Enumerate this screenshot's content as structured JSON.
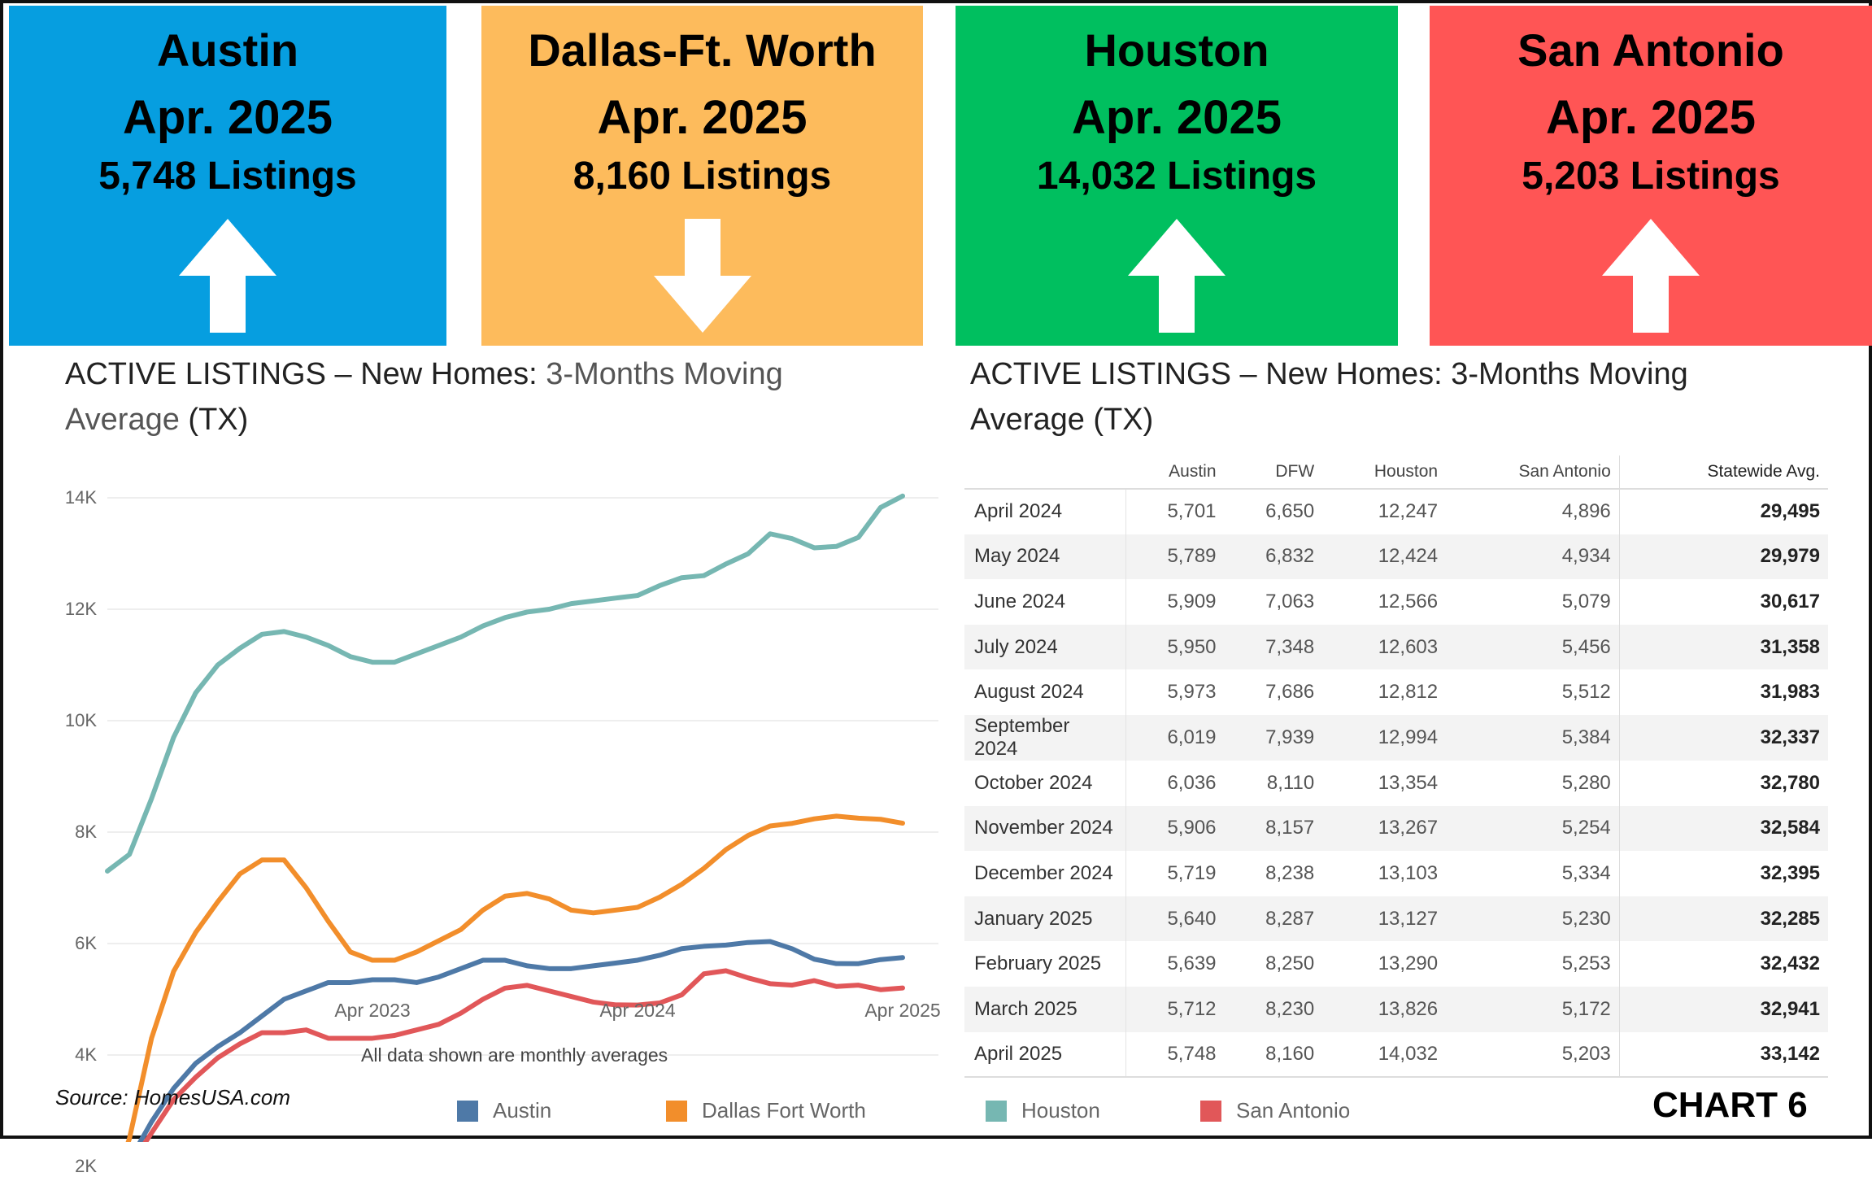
{
  "boxes": [
    {
      "city": "Austin",
      "period": "Apr. 2025",
      "count": "5,748 Listings",
      "direction": "up",
      "color": "#069ee0"
    },
    {
      "city": "Dallas-Ft. Worth",
      "period": "Apr. 2025",
      "count": "8,160 Listings",
      "direction": "down",
      "color": "#fdbb5c"
    },
    {
      "city": "Houston",
      "period": "Apr. 2025",
      "count": "14,032 Listings",
      "direction": "up",
      "color": "#00bf5f"
    },
    {
      "city": "San Antonio",
      "period": "Apr. 2025",
      "count": "5,203 Listings",
      "direction": "up",
      "color": "#ff5555"
    }
  ],
  "left_title": {
    "bold": "ACTIVE LISTINGS – New Homes:",
    "light": " 3-Months  Moving",
    "line2": "Average",
    "suffix": " (TX)"
  },
  "right_title": {
    "bold": "ACTIVE LISTINGS – New Homes: 3-Months  Moving",
    "line2": "Average (TX)"
  },
  "chart_data": {
    "type": "line",
    "x": [
      "2022-04",
      "2022-05",
      "2022-06",
      "2022-07",
      "2022-08",
      "2022-09",
      "2022-10",
      "2022-11",
      "2022-12",
      "2023-01",
      "2023-02",
      "2023-03",
      "2023-04",
      "2023-05",
      "2023-06",
      "2023-07",
      "2023-08",
      "2023-09",
      "2023-10",
      "2023-11",
      "2023-12",
      "2024-01",
      "2024-02",
      "2024-03",
      "2024-04",
      "2024-05",
      "2024-06",
      "2024-07",
      "2024-08",
      "2024-09",
      "2024-10",
      "2024-11",
      "2024-12",
      "2025-01",
      "2025-02",
      "2025-03",
      "2025-04"
    ],
    "x_tick_labels": [
      "Apr 2023",
      "Apr 2024",
      "Apr 2025"
    ],
    "y_tick_labels": [
      "2K",
      "4K",
      "6K",
      "8K",
      "10K",
      "12K",
      "14K"
    ],
    "ylim": [
      0,
      14500
    ],
    "grid": true,
    "note": "All data shown are monthly averages",
    "legend_position": "bottom",
    "series": [
      {
        "name": "Austin",
        "color": "#4e79a7",
        "values": [
          1500,
          2100,
          2800,
          3400,
          3850,
          4150,
          4400,
          4700,
          5000,
          5150,
          5300,
          5300,
          5350,
          5350,
          5300,
          5400,
          5550,
          5700,
          5700,
          5600,
          5550,
          5550,
          5600,
          5650,
          5701,
          5789,
          5909,
          5950,
          5973,
          6019,
          6036,
          5906,
          5719,
          5640,
          5639,
          5712,
          5748
        ]
      },
      {
        "name": "Dallas Fort Worth",
        "color": "#f28e2b",
        "values": [
          1350,
          2500,
          4300,
          5500,
          6200,
          6750,
          7250,
          7500,
          7500,
          7000,
          6400,
          5850,
          5700,
          5700,
          5850,
          6050,
          6250,
          6600,
          6850,
          6900,
          6800,
          6600,
          6550,
          6600,
          6650,
          6832,
          7063,
          7348,
          7686,
          7939,
          8110,
          8157,
          8238,
          8287,
          8250,
          8230,
          8160
        ]
      },
      {
        "name": "Houston",
        "color": "#76b7b2",
        "values": [
          7300,
          7600,
          8600,
          9700,
          10500,
          11000,
          11300,
          11550,
          11600,
          11500,
          11350,
          11150,
          11050,
          11050,
          11200,
          11350,
          11500,
          11700,
          11850,
          11950,
          12000,
          12100,
          12150,
          12200,
          12247,
          12424,
          12566,
          12603,
          12812,
          12994,
          13354,
          13267,
          13103,
          13127,
          13290,
          13826,
          14032
        ]
      },
      {
        "name": "San Antonio",
        "color": "#e15759",
        "values": [
          1850,
          2000,
          2600,
          3200,
          3600,
          3950,
          4200,
          4400,
          4400,
          4450,
          4300,
          4300,
          4300,
          4350,
          4450,
          4550,
          4750,
          5000,
          5200,
          5250,
          5150,
          5050,
          4950,
          4900,
          4896,
          4934,
          5079,
          5456,
          5512,
          5384,
          5280,
          5254,
          5334,
          5230,
          5253,
          5172,
          5203
        ]
      }
    ]
  },
  "table": {
    "headers": [
      "",
      "Austin",
      "DFW",
      "Houston",
      "San Antonio",
      "Statewide Avg."
    ],
    "rows": [
      [
        "April 2024",
        "5,701",
        "6,650",
        "12,247",
        "4,896",
        "29,495"
      ],
      [
        "May 2024",
        "5,789",
        "6,832",
        "12,424",
        "4,934",
        "29,979"
      ],
      [
        "June 2024",
        "5,909",
        "7,063",
        "12,566",
        "5,079",
        "30,617"
      ],
      [
        "July 2024",
        "5,950",
        "7,348",
        "12,603",
        "5,456",
        "31,358"
      ],
      [
        "August 2024",
        "5,973",
        "7,686",
        "12,812",
        "5,512",
        "31,983"
      ],
      [
        "September 2024",
        "6,019",
        "7,939",
        "12,994",
        "5,384",
        "32,337"
      ],
      [
        "October 2024",
        "6,036",
        "8,110",
        "13,354",
        "5,280",
        "32,780"
      ],
      [
        "November 2024",
        "5,906",
        "8,157",
        "13,267",
        "5,254",
        "32,584"
      ],
      [
        "December 2024",
        "5,719",
        "8,238",
        "13,103",
        "5,334",
        "32,395"
      ],
      [
        "January 2025",
        "5,640",
        "8,287",
        "13,127",
        "5,230",
        "32,285"
      ],
      [
        "February 2025",
        "5,639",
        "8,250",
        "13,290",
        "5,253",
        "32,432"
      ],
      [
        "March 2025",
        "5,712",
        "8,230",
        "13,826",
        "5,172",
        "32,941"
      ],
      [
        "April 2025",
        "5,748",
        "8,160",
        "14,032",
        "5,203",
        "33,142"
      ]
    ]
  },
  "source": "Source: HomesUSA.com",
  "chart_label": "CHART 6"
}
